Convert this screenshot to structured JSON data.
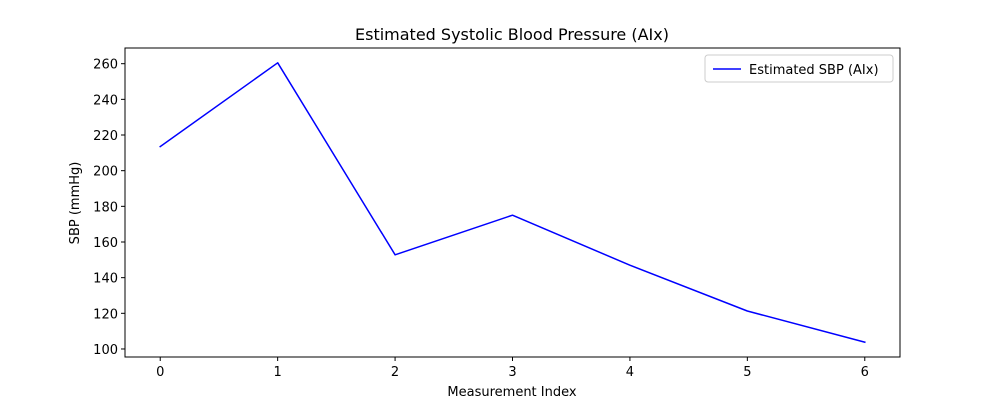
{
  "chart_data": {
    "type": "line",
    "title": "Estimated Systolic Blood Pressure (AIx)",
    "xlabel": "Measurement Index",
    "ylabel": "SBP (mmHg)",
    "x": [
      0,
      1,
      2,
      3,
      4,
      5,
      6
    ],
    "series": [
      {
        "name": "Estimated SBP (AIx)",
        "color": "#0000ff",
        "values": [
          213.5,
          260.5,
          152.8,
          175.0,
          147.0,
          121.3,
          103.8
        ]
      }
    ],
    "xlim": [
      -0.3,
      6.3
    ],
    "ylim": [
      95.5,
      268.8
    ],
    "xticks": [
      0,
      1,
      2,
      3,
      4,
      5,
      6
    ],
    "yticks": [
      100,
      120,
      140,
      160,
      180,
      200,
      220,
      240,
      260
    ],
    "grid": false,
    "legend_position": "upper right"
  }
}
